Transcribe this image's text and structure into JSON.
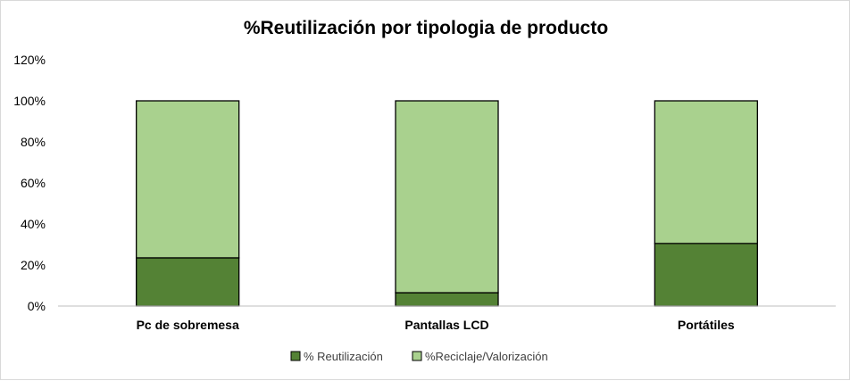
{
  "chart_data": {
    "type": "bar",
    "stacked": true,
    "title": "%Reutilización por tipologia de producto",
    "categories": [
      "Pc de sobremesa",
      "Pantallas LCD",
      "Portátiles"
    ],
    "series": [
      {
        "name": "% Reutilización",
        "values": [
          23.5,
          6.5,
          30.5
        ],
        "color": "#548235"
      },
      {
        "name": "%Reciclaje/Valorización",
        "values": [
          76.5,
          93.5,
          69.5
        ],
        "color": "#a9d18e"
      }
    ],
    "xlabel": "",
    "ylabel": "",
    "ylim": [
      0,
      120
    ],
    "yticks": [
      "0%",
      "20%",
      "40%",
      "60%",
      "80%",
      "100%",
      "120%"
    ],
    "ytick_values": [
      0,
      20,
      40,
      60,
      80,
      100,
      120
    ],
    "grid": false,
    "legend_position": "bottom",
    "bar_outline_color": "#000000",
    "axis_color": "#bfbfbf"
  }
}
